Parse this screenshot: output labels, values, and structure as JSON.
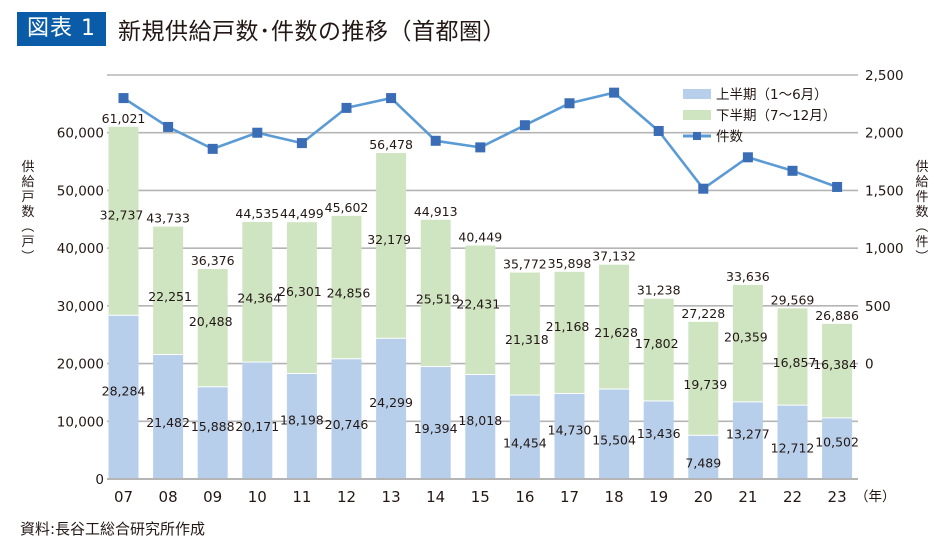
{
  "header": {
    "badge": "図表 1",
    "title": "新規供給戸数･件数の推移（首都圏）"
  },
  "source": "資料:長谷工総合研究所作成",
  "colors": {
    "badge_bg": "#0b5ca8",
    "first_half": "#b7cfeb",
    "second_half": "#cfe5c1",
    "line": "#5b9bd5",
    "marker": "#3a6db5",
    "grid": "#b5b5b5"
  },
  "chart_data": {
    "type": "bar+line",
    "title": "新規供給戸数･件数の推移（首都圏）",
    "categories": [
      "07",
      "08",
      "09",
      "10",
      "11",
      "12",
      "13",
      "14",
      "15",
      "16",
      "17",
      "18",
      "19",
      "20",
      "21",
      "22",
      "23"
    ],
    "x_unit_label": "（年）",
    "left_axis": {
      "label": [
        "供",
        "給",
        "戸",
        "数",
        "（",
        "戸",
        "）"
      ],
      "ticks": [
        "0",
        "10,000",
        "20,000",
        "30,000",
        "40,000",
        "50,000",
        "60,000"
      ],
      "tick_values": [
        0,
        10000,
        20000,
        30000,
        40000,
        50000,
        60000
      ],
      "range": [
        0,
        70000
      ]
    },
    "right_axis": {
      "label": [
        "供",
        "給",
        "件",
        "数",
        "（",
        "件",
        "）"
      ],
      "ticks": [
        "0",
        "500",
        "1,000",
        "1,500",
        "2,000",
        "2,500"
      ],
      "tick_values": [
        0,
        500,
        1000,
        1500,
        2000,
        2500
      ],
      "range": [
        -1000,
        2500
      ]
    },
    "grid": true,
    "legend_position": "top-right",
    "series": [
      {
        "name": "上半期（1～6月）",
        "type": "bar-stacked",
        "axis": "left",
        "values": [
          28284,
          21482,
          15888,
          20171,
          18198,
          20746,
          24299,
          19394,
          18018,
          14454,
          14730,
          15504,
          13436,
          7489,
          13277,
          12712,
          10502
        ],
        "labels": [
          "28,284",
          "21,482",
          "15,888",
          "20,171",
          "18,198",
          "20,746",
          "24,299",
          "19,394",
          "18,018",
          "14,454",
          "14,730",
          "15,504",
          "13,436",
          "7,489",
          "13,277",
          "12,712",
          "10,502"
        ]
      },
      {
        "name": "下半期（7～12月）",
        "type": "bar-stacked",
        "axis": "left",
        "values": [
          32737,
          22251,
          20488,
          24364,
          26301,
          24856,
          32179,
          25519,
          22431,
          21318,
          21168,
          21628,
          17802,
          19739,
          20359,
          16857,
          16384
        ],
        "labels": [
          "32,737",
          "22,251",
          "20,488",
          "24,364",
          "26,301",
          "24,856",
          "32,179",
          "25,519",
          "22,431",
          "21,318",
          "21,168",
          "21,628",
          "17,802",
          "19,739",
          "20,359",
          "16,857",
          "16,384"
        ]
      },
      {
        "name": "件数",
        "type": "line",
        "axis": "right",
        "values": [
          2300,
          2050,
          1860,
          2000,
          1910,
          2215,
          2300,
          1930,
          1873,
          2065,
          2255,
          2347,
          2015,
          1515,
          1787,
          1670,
          1530
        ]
      }
    ],
    "totals": {
      "values": [
        61021,
        43733,
        36376,
        44535,
        44499,
        45602,
        56478,
        44913,
        40449,
        35772,
        35898,
        37132,
        31238,
        27228,
        33636,
        29569,
        26886
      ],
      "labels": [
        "61,021",
        "43,733",
        "36,376",
        "44,535",
        "44,499",
        "45,602",
        "56,478",
        "44,913",
        "40,449",
        "35,772",
        "35,898",
        "37,132",
        "31,238",
        "27,228",
        "33,636",
        "29,569",
        "26,886"
      ]
    }
  }
}
